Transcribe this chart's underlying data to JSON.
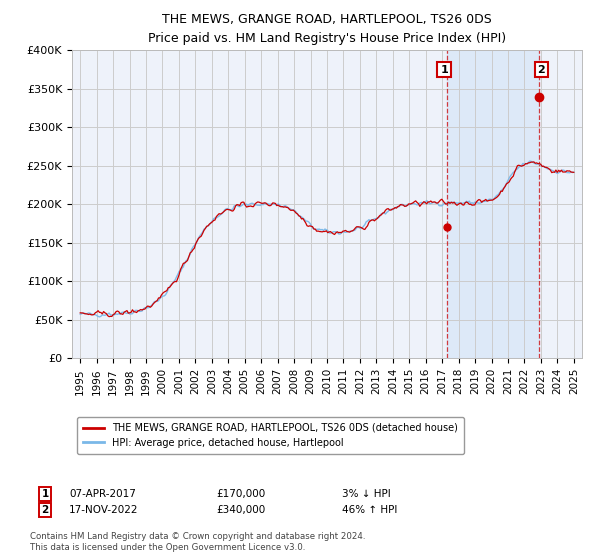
{
  "title": "THE MEWS, GRANGE ROAD, HARTLEPOOL, TS26 0DS",
  "subtitle": "Price paid vs. HM Land Registry's House Price Index (HPI)",
  "ylabel_ticks": [
    "£0",
    "£50K",
    "£100K",
    "£150K",
    "£200K",
    "£250K",
    "£300K",
    "£350K",
    "£400K"
  ],
  "ylim": [
    0,
    400000
  ],
  "ytick_values": [
    0,
    50000,
    100000,
    150000,
    200000,
    250000,
    300000,
    350000,
    400000
  ],
  "legend_line1": "THE MEWS, GRANGE ROAD, HARTLEPOOL, TS26 0DS (detached house)",
  "legend_line2": "HPI: Average price, detached house, Hartlepool",
  "annotation1_label": "1",
  "annotation1_date": "07-APR-2017",
  "annotation1_price": "£170,000",
  "annotation1_hpi": "3% ↓ HPI",
  "annotation1_year": 2017.27,
  "annotation1_value": 170000,
  "annotation2_label": "2",
  "annotation2_date": "17-NOV-2022",
  "annotation2_price": "£340,000",
  "annotation2_hpi": "46% ↑ HPI",
  "annotation2_year": 2022.88,
  "annotation2_value": 340000,
  "footer": "Contains HM Land Registry data © Crown copyright and database right 2024.\nThis data is licensed under the Open Government Licence v3.0.",
  "hpi_color": "#7ab8e8",
  "price_color": "#cc0000",
  "annotation_box_color": "#cc0000",
  "grid_color": "#cccccc",
  "background_color": "#ffffff",
  "plot_bg_color": "#eef2fa"
}
